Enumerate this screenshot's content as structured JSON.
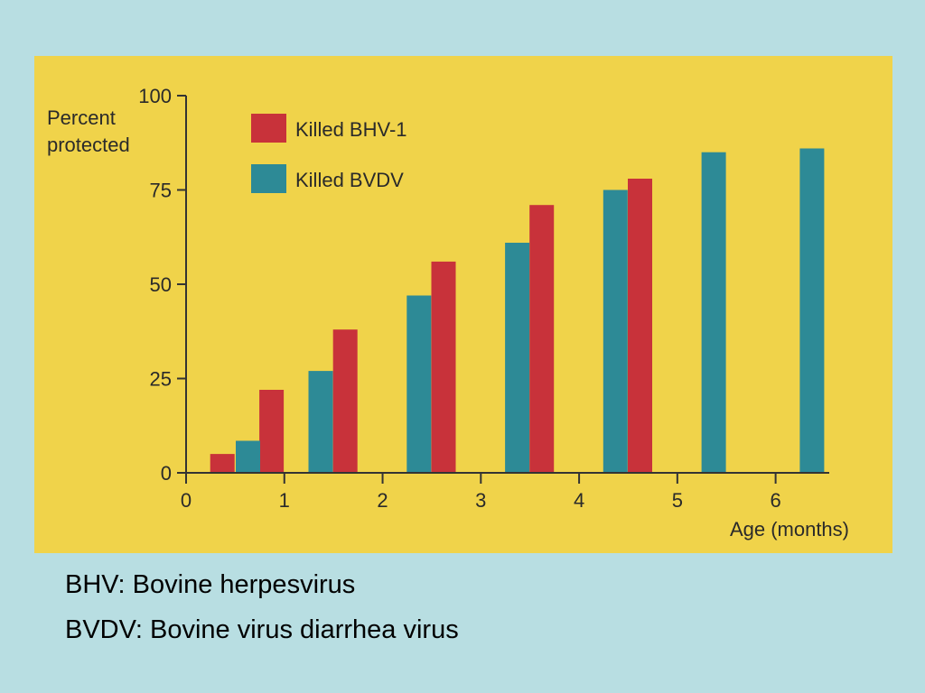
{
  "chart_data": {
    "type": "bar",
    "ylabel_lines": [
      "Percent",
      "protected"
    ],
    "xlabel": "Age (months)",
    "ylim": [
      0,
      100
    ],
    "xlim": [
      0,
      6.5
    ],
    "y_ticks": [
      0,
      25,
      50,
      75,
      100
    ],
    "x_ticks": [
      0,
      1,
      2,
      3,
      4,
      5,
      6
    ],
    "legend_position": "top-left",
    "series": [
      {
        "name": "Killed BHV-1",
        "color": "#c8323a",
        "points": [
          {
            "x": 0.37,
            "y": 5
          },
          {
            "x": 0.87,
            "y": 22
          },
          {
            "x": 1.62,
            "y": 38
          },
          {
            "x": 2.62,
            "y": 56
          },
          {
            "x": 3.62,
            "y": 71
          },
          {
            "x": 4.62,
            "y": 78
          }
        ]
      },
      {
        "name": "Killed BVDV",
        "color": "#2d8a96",
        "points": [
          {
            "x": 0.63,
            "y": 8.5
          },
          {
            "x": 1.37,
            "y": 27
          },
          {
            "x": 2.37,
            "y": 47
          },
          {
            "x": 3.37,
            "y": 61
          },
          {
            "x": 4.37,
            "y": 75
          },
          {
            "x": 5.37,
            "y": 85
          },
          {
            "x": 6.37,
            "y": 86
          }
        ]
      }
    ]
  },
  "captions": {
    "line1": "BHV: Bovine herpesvirus",
    "line2": "BVDV: Bovine virus diarrhea virus"
  }
}
